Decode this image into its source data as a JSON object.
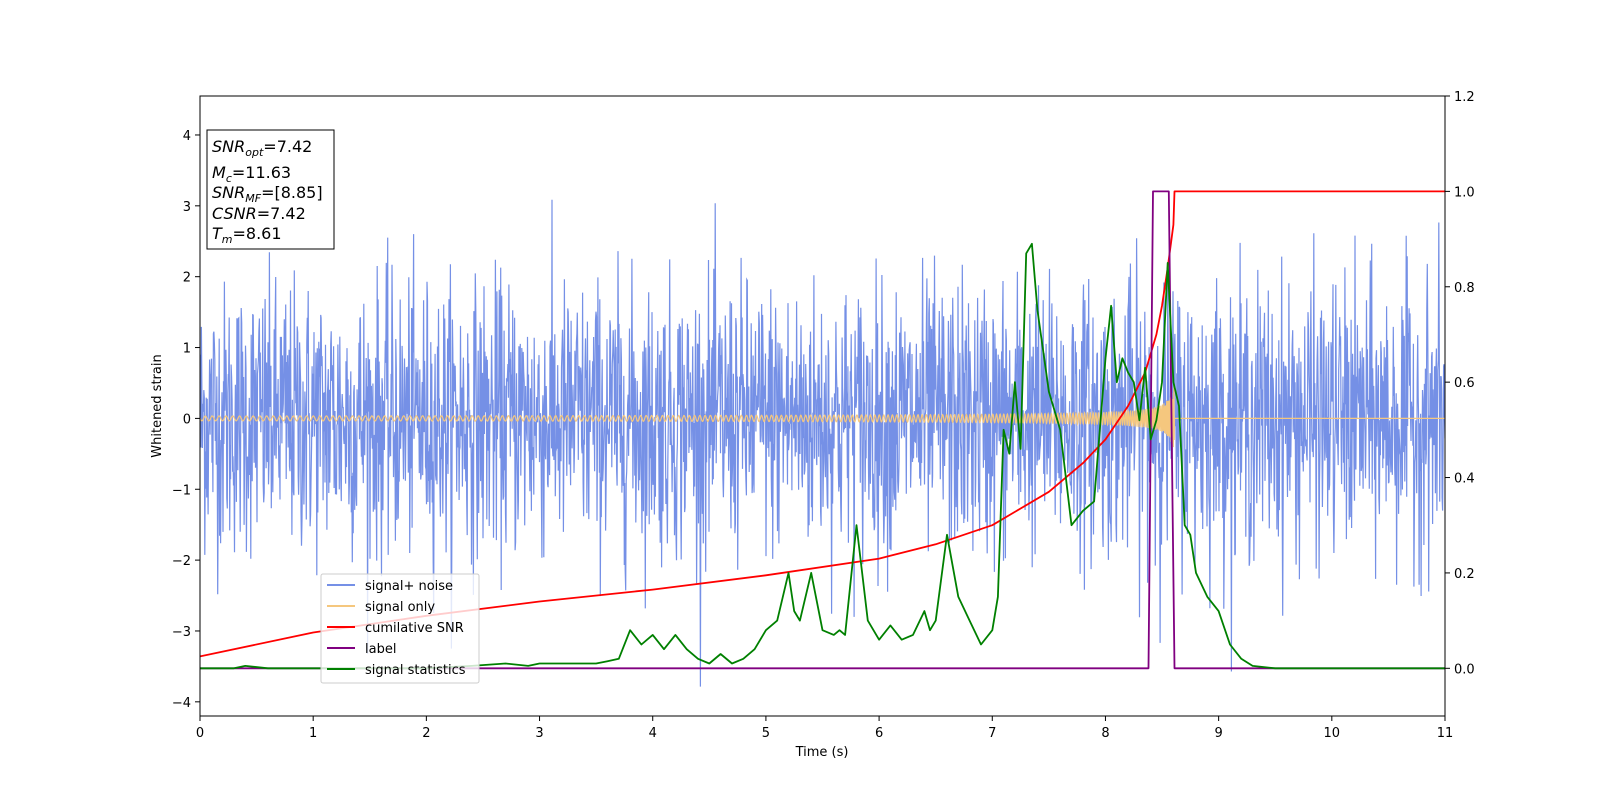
{
  "chart_data": {
    "type": "line",
    "title": "",
    "xlabel": "Time (s)",
    "ylabel": "Whitened strain",
    "y2label": "",
    "xlim": [
      0,
      11
    ],
    "ylim": [
      -4.2,
      4.55
    ],
    "y2lim": [
      -0.1,
      1.2
    ],
    "xticks": [
      0,
      1,
      2,
      3,
      4,
      5,
      6,
      7,
      8,
      9,
      10,
      11
    ],
    "yticks": [
      -4,
      -3,
      -2,
      -1,
      0,
      1,
      2,
      3,
      4
    ],
    "y2ticks": [
      0.0,
      0.2,
      0.4,
      0.6,
      0.8,
      1.0,
      1.2
    ],
    "grid": false,
    "legend_position": "lower-left",
    "annotation": {
      "snr_opt_label": "SNR",
      "snr_opt_sub": "opt",
      "snr_opt_value": "=7.42",
      "mc_label": "M",
      "mc_sub": "c",
      "mc_value": "=11.63",
      "snr_mf_label": "SNR",
      "snr_mf_sub": "MF",
      "snr_mf_value": "=[8.85]",
      "csnr_label": "CSNR",
      "csnr_value": "=7.42",
      "tm_label": "T",
      "tm_sub": "m",
      "tm_value": "=8.61"
    },
    "series": [
      {
        "name": "signal+ noise",
        "axis": "left",
        "color": "#7590e6",
        "description_only": false,
        "noise_std": 0.95,
        "peak_abs": 3.9
      },
      {
        "name": "signal only",
        "axis": "left",
        "color": "#f5c77e",
        "merger_time": 8.61,
        "peak_amplitude": 0.55
      },
      {
        "name": "cumilative SNR",
        "axis": "right",
        "color": "#ff0000",
        "x": [
          0,
          1,
          2,
          3,
          4,
          5,
          6,
          6.5,
          7,
          7.5,
          7.8,
          8.0,
          8.2,
          8.35,
          8.45,
          8.5,
          8.55,
          8.6,
          8.61,
          9,
          10,
          11
        ],
        "y": [
          0.025,
          0.075,
          0.11,
          0.14,
          0.165,
          0.195,
          0.23,
          0.26,
          0.3,
          0.37,
          0.43,
          0.48,
          0.55,
          0.62,
          0.7,
          0.76,
          0.84,
          0.93,
          1.0,
          1.0,
          1.0,
          1.0
        ]
      },
      {
        "name": "label",
        "axis": "right",
        "color": "#800080",
        "x": [
          0,
          8.38,
          8.42,
          8.56,
          8.61,
          11
        ],
        "y": [
          0.0,
          0.0,
          1.0,
          1.0,
          0.0,
          0.0
        ]
      },
      {
        "name": "signal statistics",
        "axis": "right",
        "color": "#008000",
        "x": [
          0,
          0.3,
          0.4,
          0.6,
          1.0,
          1.5,
          2.0,
          2.4,
          2.7,
          2.9,
          3.0,
          3.3,
          3.5,
          3.6,
          3.7,
          3.8,
          3.9,
          4.0,
          4.1,
          4.2,
          4.3,
          4.4,
          4.5,
          4.6,
          4.7,
          4.8,
          4.9,
          5.0,
          5.1,
          5.2,
          5.25,
          5.3,
          5.4,
          5.5,
          5.6,
          5.65,
          5.7,
          5.8,
          5.9,
          6.0,
          6.1,
          6.2,
          6.3,
          6.4,
          6.45,
          6.5,
          6.6,
          6.7,
          6.8,
          6.9,
          7.0,
          7.05,
          7.1,
          7.15,
          7.2,
          7.25,
          7.3,
          7.35,
          7.4,
          7.5,
          7.6,
          7.7,
          7.8,
          7.9,
          8.0,
          8.05,
          8.1,
          8.15,
          8.2,
          8.25,
          8.3,
          8.35,
          8.4,
          8.45,
          8.5,
          8.55,
          8.6,
          8.65,
          8.7,
          8.75,
          8.8,
          8.9,
          9.0,
          9.1,
          9.2,
          9.3,
          9.5,
          10.0,
          10.5,
          11.0
        ],
        "y": [
          0.0,
          0.0,
          0.005,
          0.0,
          0.0,
          0.0,
          0.0,
          0.005,
          0.01,
          0.005,
          0.01,
          0.01,
          0.01,
          0.015,
          0.02,
          0.08,
          0.05,
          0.07,
          0.04,
          0.07,
          0.04,
          0.02,
          0.01,
          0.03,
          0.01,
          0.02,
          0.04,
          0.08,
          0.1,
          0.2,
          0.12,
          0.1,
          0.2,
          0.08,
          0.07,
          0.08,
          0.07,
          0.3,
          0.1,
          0.06,
          0.09,
          0.06,
          0.07,
          0.12,
          0.08,
          0.1,
          0.28,
          0.15,
          0.1,
          0.05,
          0.08,
          0.15,
          0.5,
          0.45,
          0.6,
          0.46,
          0.87,
          0.89,
          0.75,
          0.58,
          0.5,
          0.3,
          0.33,
          0.35,
          0.65,
          0.76,
          0.6,
          0.65,
          0.62,
          0.6,
          0.52,
          0.63,
          0.48,
          0.52,
          0.6,
          0.85,
          0.6,
          0.55,
          0.3,
          0.28,
          0.2,
          0.15,
          0.12,
          0.05,
          0.02,
          0.005,
          0.0,
          0.0,
          0.0,
          0.0
        ]
      }
    ]
  }
}
